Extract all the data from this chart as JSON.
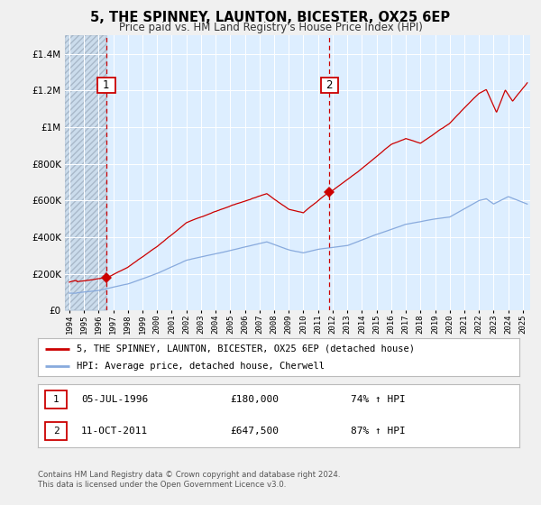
{
  "title": "5, THE SPINNEY, LAUNTON, BICESTER, OX25 6EP",
  "subtitle": "Price paid vs. HM Land Registry's House Price Index (HPI)",
  "legend_line1": "5, THE SPINNEY, LAUNTON, BICESTER, OX25 6EP (detached house)",
  "legend_line2": "HPI: Average price, detached house, Cherwell",
  "footnote1": "Contains HM Land Registry data © Crown copyright and database right 2024.",
  "footnote2": "This data is licensed under the Open Government Licence v3.0.",
  "sale1_date": "05-JUL-1996",
  "sale1_price": "£180,000",
  "sale1_hpi": "74% ↑ HPI",
  "sale2_date": "11-OCT-2011",
  "sale2_price": "£647,500",
  "sale2_hpi": "87% ↑ HPI",
  "sale1_year": 1996.53,
  "sale2_year": 2011.78,
  "sale1_value": 180000,
  "sale2_value": 647500,
  "red_color": "#cc0000",
  "blue_color": "#88aadd",
  "bg_color": "#ddeeff",
  "grid_color": "#ffffff",
  "dashed_color": "#cc0000",
  "ylim_max": 1500000,
  "xlim_min": 1993.7,
  "xlim_max": 2025.5,
  "yticks": [
    0,
    200000,
    400000,
    600000,
    800000,
    1000000,
    1200000,
    1400000
  ],
  "xticks": [
    1994,
    1995,
    1996,
    1997,
    1998,
    1999,
    2000,
    2001,
    2002,
    2003,
    2004,
    2005,
    2006,
    2007,
    2008,
    2009,
    2010,
    2011,
    2012,
    2013,
    2014,
    2015,
    2016,
    2017,
    2018,
    2019,
    2020,
    2021,
    2022,
    2023,
    2024,
    2025
  ]
}
